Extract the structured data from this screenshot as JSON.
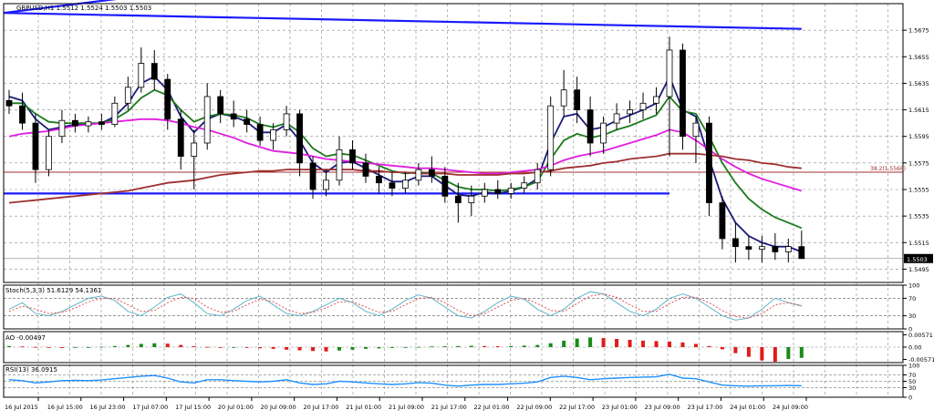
{
  "chart_data": [
    {
      "type": "candlestick",
      "panel": "price",
      "title": "GBPUSD,H1  1.5512 1.5524 1.5503 1.5503",
      "ylim": [
        1.5485,
        1.5695
      ],
      "y_ticks": [
        "1.5675",
        "1.5655",
        "1.5635",
        "1.5615",
        "1.5595",
        "1.5575",
        "1.5555",
        "1.5535",
        "1.5515",
        "1.5495"
      ],
      "last_price_label": "1.5503",
      "fib_label": "38.2(1.5568)",
      "fib_level": 1.5568,
      "candles": [
        [
          1.5622,
          1.563,
          1.5612,
          1.5618
        ],
        [
          1.5618,
          1.5628,
          1.56,
          1.5605
        ],
        [
          1.5605,
          1.5612,
          1.556,
          1.557
        ],
        [
          1.557,
          1.56,
          1.5565,
          1.5595
        ],
        [
          1.5595,
          1.5615,
          1.559,
          1.5607
        ],
        [
          1.5607,
          1.5612,
          1.5598,
          1.5603
        ],
        [
          1.5603,
          1.561,
          1.5598,
          1.5606
        ],
        [
          1.5606,
          1.5612,
          1.56,
          1.5604
        ],
        [
          1.5604,
          1.5625,
          1.5602,
          1.562
        ],
        [
          1.562,
          1.564,
          1.5615,
          1.5632
        ],
        [
          1.5632,
          1.5662,
          1.5628,
          1.565
        ],
        [
          1.565,
          1.566,
          1.563,
          1.5638
        ],
        [
          1.5638,
          1.5642,
          1.56,
          1.5608
        ],
        [
          1.5608,
          1.5615,
          1.557,
          1.558
        ],
        [
          1.558,
          1.56,
          1.5555,
          1.559
        ],
        [
          1.559,
          1.5635,
          1.5585,
          1.5625
        ],
        [
          1.5625,
          1.563,
          1.5605,
          1.5612
        ],
        [
          1.5612,
          1.5622,
          1.5602,
          1.5608
        ],
        [
          1.5608,
          1.5615,
          1.5598,
          1.5604
        ],
        [
          1.5604,
          1.561,
          1.5588,
          1.5592
        ],
        [
          1.5592,
          1.5605,
          1.5585,
          1.56
        ],
        [
          1.56,
          1.5618,
          1.5595,
          1.5612
        ],
        [
          1.5612,
          1.5615,
          1.5565,
          1.5575
        ],
        [
          1.5575,
          1.558,
          1.5548,
          1.5555
        ],
        [
          1.5555,
          1.557,
          1.555,
          1.5562
        ],
        [
          1.5562,
          1.5595,
          1.5558,
          1.5585
        ],
        [
          1.5585,
          1.5592,
          1.557,
          1.5575
        ],
        [
          1.5575,
          1.5582,
          1.556,
          1.5565
        ],
        [
          1.5565,
          1.5572,
          1.5552,
          1.556
        ],
        [
          1.556,
          1.5568,
          1.555,
          1.5556
        ],
        [
          1.5556,
          1.5568,
          1.5552,
          1.5562
        ],
        [
          1.5562,
          1.5575,
          1.5558,
          1.557
        ],
        [
          1.557,
          1.558,
          1.556,
          1.5565
        ],
        [
          1.5565,
          1.5572,
          1.5545,
          1.555
        ],
        [
          1.555,
          1.556,
          1.553,
          1.5545
        ],
        [
          1.5545,
          1.5558,
          1.5535,
          1.555
        ],
        [
          1.555,
          1.556,
          1.5545,
          1.5555
        ],
        [
          1.5555,
          1.5562,
          1.5548,
          1.5552
        ],
        [
          1.5552,
          1.556,
          1.5548,
          1.5556
        ],
        [
          1.5556,
          1.5565,
          1.5552,
          1.556
        ],
        [
          1.556,
          1.5575,
          1.5555,
          1.557
        ],
        [
          1.557,
          1.5625,
          1.5565,
          1.5618
        ],
        [
          1.5618,
          1.5645,
          1.561,
          1.563
        ],
        [
          1.563,
          1.564,
          1.5605,
          1.5615
        ],
        [
          1.5615,
          1.5625,
          1.558,
          1.559
        ],
        [
          1.559,
          1.561,
          1.5582,
          1.5605
        ],
        [
          1.5605,
          1.562,
          1.56,
          1.5612
        ],
        [
          1.5612,
          1.5622,
          1.5605,
          1.5615
        ],
        [
          1.5615,
          1.5628,
          1.5608,
          1.562
        ],
        [
          1.562,
          1.5632,
          1.5612,
          1.5625
        ],
        [
          1.5625,
          1.567,
          1.558,
          1.566
        ],
        [
          1.566,
          1.5665,
          1.5585,
          1.5595
        ],
        [
          1.5595,
          1.561,
          1.5575,
          1.5605
        ],
        [
          1.5605,
          1.561,
          1.5535,
          1.5545
        ],
        [
          1.5545,
          1.555,
          1.551,
          1.5518
        ],
        [
          1.5518,
          1.553,
          1.55,
          1.5512
        ],
        [
          1.5512,
          1.552,
          1.5502,
          1.551
        ],
        [
          1.551,
          1.552,
          1.55,
          1.5512
        ],
        [
          1.5512,
          1.5522,
          1.5502,
          1.5508
        ],
        [
          1.5508,
          1.5518,
          1.55,
          1.5512
        ],
        [
          1.5512,
          1.5524,
          1.5503,
          1.5503
        ]
      ],
      "lines": [
        {
          "color": "#1a1a7a",
          "values": [
            1.5625,
            1.5622,
            1.5608,
            1.56,
            1.5602,
            1.5604,
            1.5604,
            1.5605,
            1.561,
            1.562,
            1.5635,
            1.564,
            1.563,
            1.561,
            1.5598,
            1.5608,
            1.5612,
            1.561,
            1.5606,
            1.5598,
            1.5598,
            1.5604,
            1.5592,
            1.5575,
            1.5568,
            1.5575,
            1.5576,
            1.5571,
            1.5566,
            1.5561,
            1.5561,
            1.5565,
            1.5565,
            1.5558,
            1.5551,
            1.555,
            1.5553,
            1.5552,
            1.5554,
            1.5557,
            1.5563,
            1.559,
            1.561,
            1.5612,
            1.56,
            1.5602,
            1.5607,
            1.5611,
            1.5615,
            1.562,
            1.564,
            1.5615,
            1.561,
            1.5578,
            1.5548,
            1.553,
            1.552,
            1.5515,
            1.5512,
            1.5512,
            1.5508
          ]
        },
        {
          "color": "#1b7a1b",
          "values": [
            1.562,
            1.562,
            1.5612,
            1.5606,
            1.5605,
            1.5605,
            1.5605,
            1.5605,
            1.5608,
            1.5614,
            1.5624,
            1.563,
            1.5626,
            1.5615,
            1.5606,
            1.561,
            1.5612,
            1.5611,
            1.5609,
            1.5604,
            1.5602,
            1.5605,
            1.5598,
            1.5586,
            1.558,
            1.5582,
            1.5581,
            1.5577,
            1.5573,
            1.5569,
            1.5567,
            1.5568,
            1.5567,
            1.5562,
            1.5557,
            1.5555,
            1.5555,
            1.5554,
            1.5555,
            1.5557,
            1.5561,
            1.5578,
            1.5592,
            1.5597,
            1.5594,
            1.5596,
            1.56,
            1.5603,
            1.5607,
            1.5611,
            1.5625,
            1.5614,
            1.5612,
            1.5595,
            1.5575,
            1.556,
            1.5548,
            1.554,
            1.5534,
            1.553,
            1.5526
          ]
        },
        {
          "color": "#e01ee0",
          "values": [
            1.5595,
            1.5597,
            1.5598,
            1.5599,
            1.5601,
            1.5603,
            1.5604,
            1.5605,
            1.5606,
            1.5607,
            1.5608,
            1.5608,
            1.5607,
            1.5605,
            1.5602,
            1.56,
            1.5597,
            1.5594,
            1.559,
            1.5587,
            1.5584,
            1.5583,
            1.5582,
            1.558,
            1.5578,
            1.5577,
            1.5576,
            1.5575,
            1.5574,
            1.5573,
            1.5572,
            1.5571,
            1.5571,
            1.557,
            1.5569,
            1.5568,
            1.5567,
            1.5567,
            1.5568,
            1.5569,
            1.557,
            1.5573,
            1.5577,
            1.558,
            1.5582,
            1.5584,
            1.5587,
            1.559,
            1.5593,
            1.5596,
            1.56,
            1.5598,
            1.5592,
            1.5585,
            1.5578,
            1.5572,
            1.5567,
            1.5563,
            1.556,
            1.5557,
            1.5554
          ]
        },
        {
          "color": "#a03030",
          "values": [
            1.5545,
            1.5546,
            1.5547,
            1.5548,
            1.5549,
            1.555,
            1.5551,
            1.5552,
            1.5553,
            1.5554,
            1.5556,
            1.5558,
            1.556,
            1.5561,
            1.5562,
            1.5564,
            1.5566,
            1.5567,
            1.5568,
            1.5569,
            1.5569,
            1.557,
            1.557,
            1.557,
            1.557,
            1.557,
            1.557,
            1.5569,
            1.5569,
            1.5568,
            1.5568,
            1.5567,
            1.5567,
            1.5567,
            1.5566,
            1.5566,
            1.5566,
            1.5566,
            1.5567,
            1.5567,
            1.5568,
            1.5569,
            1.5571,
            1.5572,
            1.5573,
            1.5575,
            1.5576,
            1.5578,
            1.5579,
            1.558,
            1.5582,
            1.5582,
            1.5582,
            1.5581,
            1.558,
            1.5578,
            1.5577,
            1.5575,
            1.5574,
            1.5572,
            1.5571
          ]
        }
      ],
      "trendlines": [
        {
          "color": "#1a1aff",
          "p1": [
            0,
            1.5688
          ],
          "p2": [
            60,
            1.5676
          ],
          "note": "channel top"
        },
        {
          "color": "#1a1aff",
          "p1": [
            0,
            1.5552
          ],
          "p2": [
            50,
            1.5552
          ],
          "note": "support"
        },
        {
          "color": "#1a1aff",
          "p1": [
            0,
            1.5688
          ],
          "p2": [
            11,
            1.5702
          ],
          "note": "rising line"
        }
      ]
    },
    {
      "type": "line",
      "panel": "stochastic",
      "label": "Stoch(5,3,3) 51.6129 54.1361",
      "ylim": [
        0,
        100
      ],
      "y_ticks": [
        "100",
        "70",
        "30",
        "0"
      ],
      "series": [
        {
          "color": "#5fb5c9",
          "values": [
            45,
            60,
            35,
            30,
            40,
            55,
            70,
            75,
            65,
            40,
            30,
            50,
            72,
            80,
            60,
            35,
            30,
            45,
            65,
            75,
            55,
            35,
            30,
            40,
            55,
            70,
            60,
            40,
            30,
            45,
            65,
            78,
            70,
            50,
            30,
            25,
            40,
            60,
            75,
            68,
            45,
            30,
            45,
            70,
            85,
            80,
            60,
            40,
            30,
            45,
            70,
            80,
            70,
            50,
            30,
            20,
            25,
            45,
            70,
            60,
            52
          ]
        },
        {
          "color": "#e05050",
          "values": [
            40,
            52,
            45,
            35,
            38,
            48,
            62,
            70,
            70,
            55,
            40,
            42,
            60,
            72,
            70,
            50,
            38,
            40,
            55,
            68,
            62,
            45,
            35,
            38,
            48,
            62,
            62,
            50,
            38,
            40,
            55,
            70,
            72,
            60,
            42,
            30,
            35,
            50,
            65,
            70,
            58,
            42,
            40,
            58,
            75,
            80,
            72,
            55,
            40,
            40,
            58,
            72,
            72,
            60,
            42,
            28,
            25,
            35,
            55,
            60,
            54
          ]
        }
      ]
    },
    {
      "type": "bar",
      "panel": "awesome_oscillator",
      "label": "AO -0.00497",
      "ylim": [
        -0.0072,
        0.0072
      ],
      "y_ticks": [
        "0.00571",
        "0.00",
        "-0.00571"
      ],
      "values": [
        0.0005,
        0.0003,
        0.0001,
        -0.0002,
        -0.0004,
        -0.0003,
        -0.0001,
        0.0002,
        0.0005,
        0.001,
        0.0015,
        0.0018,
        0.0016,
        0.001,
        0.0004,
        0.0001,
        -0.0001,
        0.0,
        -0.0002,
        -0.0005,
        -0.0008,
        -0.0012,
        -0.0015,
        -0.0018,
        -0.002,
        -0.0016,
        -0.0012,
        -0.0008,
        -0.0006,
        -0.0004,
        -0.0002,
        0.0001,
        0.0003,
        0.0004,
        0.0005,
        0.0006,
        0.0005,
        0.0004,
        0.0005,
        0.0007,
        0.001,
        0.0018,
        0.003,
        0.004,
        0.0045,
        0.0042,
        0.0038,
        0.0034,
        0.003,
        0.0028,
        0.0026,
        0.0022,
        0.0015,
        0.0005,
        -0.001,
        -0.0028,
        -0.0045,
        -0.0062,
        -0.0068,
        -0.0055,
        -0.005
      ]
    },
    {
      "type": "line",
      "panel": "rsi",
      "label": "RSI(13) 36.0915",
      "ylim": [
        0,
        100
      ],
      "y_ticks": [
        "100",
        "70",
        "50",
        "30",
        "0"
      ],
      "series": [
        {
          "color": "#1e90ff",
          "values": [
            55,
            52,
            45,
            48,
            52,
            53,
            52,
            54,
            58,
            62,
            66,
            68,
            60,
            48,
            45,
            55,
            55,
            52,
            50,
            48,
            50,
            55,
            45,
            40,
            42,
            50,
            48,
            45,
            42,
            40,
            42,
            46,
            44,
            38,
            35,
            38,
            40,
            40,
            42,
            44,
            48,
            62,
            66,
            62,
            55,
            58,
            60,
            62,
            63,
            64,
            72,
            60,
            58,
            48,
            38,
            36,
            35,
            36,
            36,
            37,
            36
          ]
        }
      ]
    }
  ],
  "x_ticks": [
    "16 Jul 2015",
    "16 Jul 15:00",
    "16 Jul 23:00",
    "17 Jul 07:00",
    "17 Jul 15:00",
    "20 Jul 01:00",
    "20 Jul 09:00",
    "20 Jul 17:00",
    "21 Jul 01:00",
    "21 Jul 09:00",
    "21 Jul 17:00",
    "22 Jul 01:00",
    "22 Jul 09:00",
    "22 Jul 17:00",
    "23 Jul 01:00",
    "23 Jul 09:00",
    "23 Jul 17:00",
    "24 Jul 01:00",
    "24 Jul 09:00"
  ],
  "colors": {
    "background": "#ffffff",
    "grid": "#8c8c8c",
    "bull": "#ffffff",
    "bear": "#000000",
    "ao_up": "#1b8a1b",
    "ao_down": "#e01b1b",
    "level_line": "#5a5a5a"
  }
}
